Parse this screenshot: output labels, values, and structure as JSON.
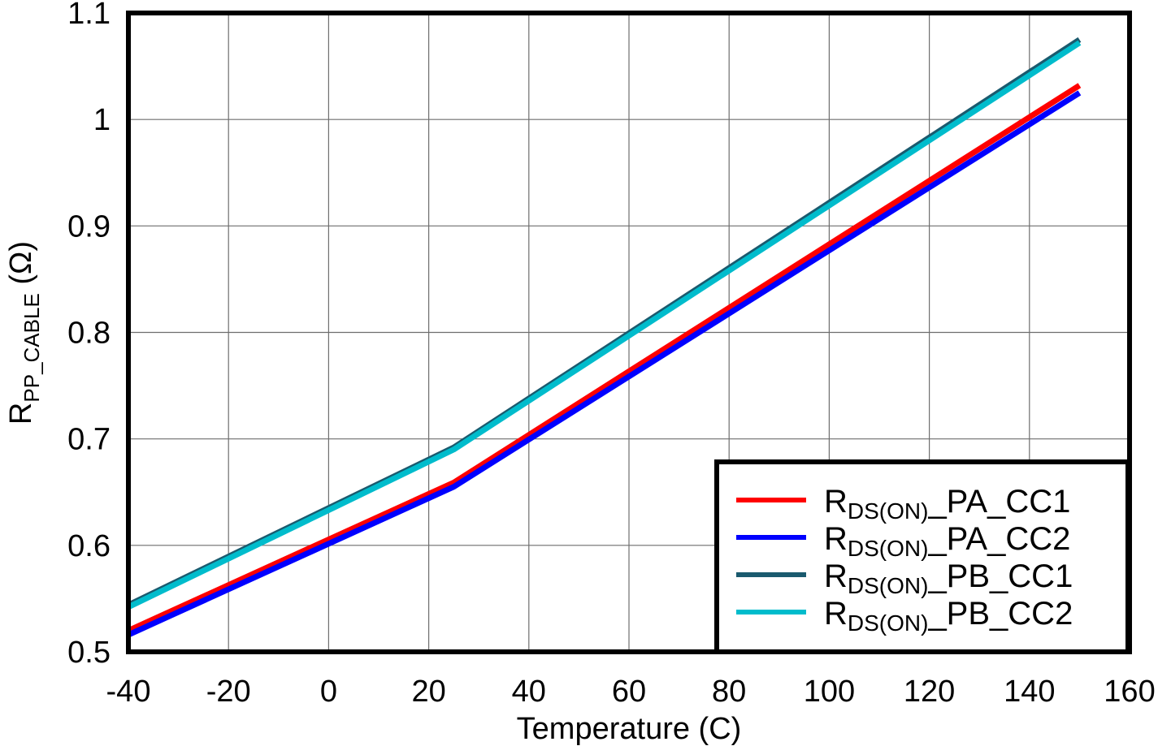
{
  "chart_data": {
    "type": "line",
    "title": "",
    "xlabel": "Temperature (C)",
    "ylabel": "R_PP_CABLE (Ω)",
    "ylabel_parts": {
      "main": "R",
      "sub": "PP_CABLE",
      "unit": " (Ω)"
    },
    "xlim": [
      -40,
      160
    ],
    "ylim": [
      0.5,
      1.1
    ],
    "xticks": [
      -40,
      -20,
      0,
      20,
      40,
      60,
      80,
      100,
      120,
      140,
      160
    ],
    "yticks": [
      0.5,
      0.6,
      0.7,
      0.8,
      0.9,
      1,
      1.1
    ],
    "xtick_labels": [
      "-40",
      "-20",
      "0",
      "20",
      "40",
      "60",
      "80",
      "100",
      "120",
      "140",
      "160"
    ],
    "ytick_labels": [
      "0.5",
      "0.6",
      "0.7",
      "0.8",
      "0.9",
      "1",
      "1.1"
    ],
    "grid": true,
    "legend_position": "lower right",
    "x": [
      -40,
      25,
      150
    ],
    "series": [
      {
        "name": "RDS(ON)_PA_CC1",
        "label_main": "R",
        "label_sub": "DS(ON)",
        "label_rest": "_PA_CC1",
        "color": "#ff0000",
        "values": [
          0.52,
          0.659,
          1.032
        ]
      },
      {
        "name": "RDS(ON)_PA_CC2",
        "label_main": "R",
        "label_sub": "DS(ON)",
        "label_rest": "_PA_CC2",
        "color": "#0000ff",
        "values": [
          0.516,
          0.655,
          1.025
        ]
      },
      {
        "name": "RDS(ON)_PB_CC1",
        "label_main": "R",
        "label_sub": "DS(ON)",
        "label_rest": "_PB_CC1",
        "color": "#1a5a6e",
        "values": [
          0.544,
          0.692,
          1.075
        ]
      },
      {
        "name": "RDS(ON)_PB_CC2",
        "label_main": "R",
        "label_sub": "DS(ON)",
        "label_rest": "_PB_CC2",
        "color": "#00bccc",
        "values": [
          0.542,
          0.69,
          1.072
        ]
      }
    ]
  }
}
